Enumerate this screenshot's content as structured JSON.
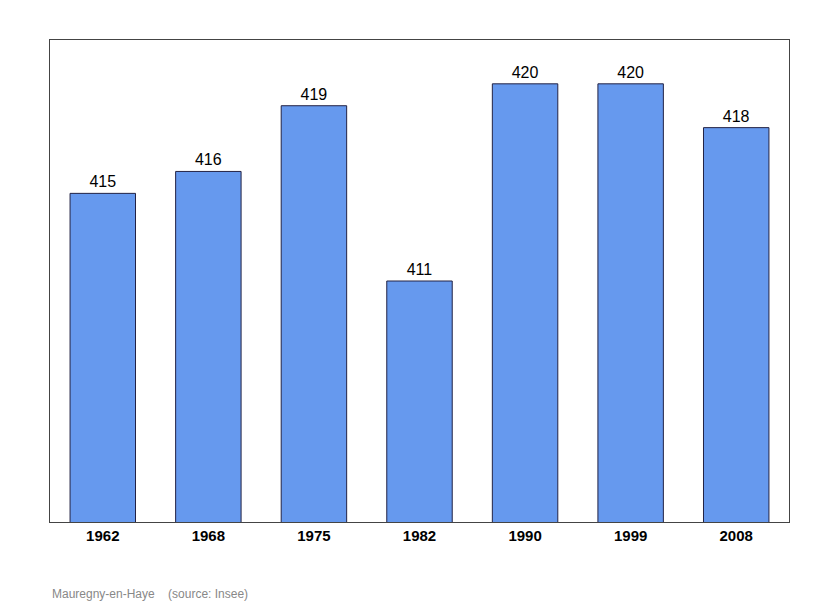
{
  "chart_data": {
    "type": "bar",
    "subtitle": "Mauregny-en-Haye    (source: Insee)",
    "categories": [
      "1962",
      "1968",
      "1975",
      "1982",
      "1990",
      "1999",
      "2008"
    ],
    "values": [
      415,
      416,
      419,
      411,
      420,
      420,
      418
    ],
    "color": "#6699EE",
    "ylim": [
      400,
      422
    ],
    "data_labels": true,
    "tick_labels": "x",
    "grid": false
  }
}
